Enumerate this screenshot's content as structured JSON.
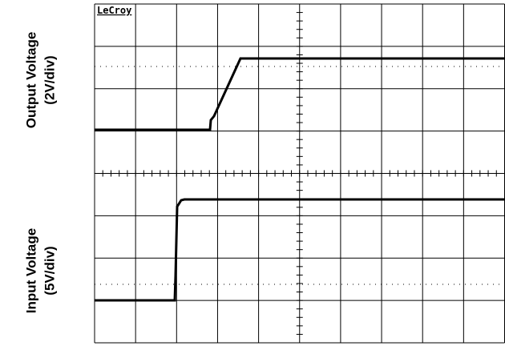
{
  "brand": "LeCroy",
  "labels": [
    {
      "title": "Output Voltage",
      "scale": "(2V/div)"
    },
    {
      "title": "Input Voltage",
      "scale": "(5V/div)"
    }
  ]
}
